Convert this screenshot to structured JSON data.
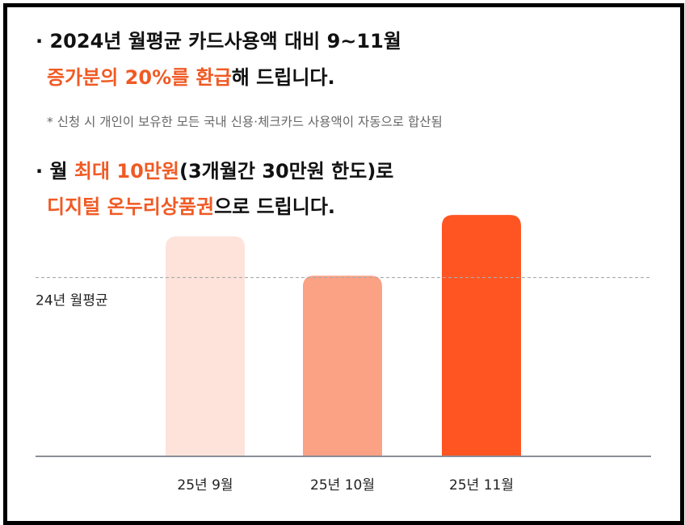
{
  "headline1": {
    "bullet": "·",
    "line1_text": "2024년 월평균 카드사용액 대비 9~11월",
    "line2_highlight": "증가분의 20%를 환급",
    "line2_rest": "해 드립니다."
  },
  "note": "* 신청 시 개인이 보유한 모든 국내 신용·체크카드 사용액이 자동으로 합산됨",
  "headline2": {
    "bullet": "·",
    "line1_pre": "월 ",
    "line1_highlight": "최대 10만원",
    "line1_rest": "(3개월간 30만원 한도)로",
    "line2_highlight": "디지털 온누리상품권",
    "line2_rest": "으로 드립니다."
  },
  "colors": {
    "accent": "#f05a24",
    "bar_sep": "#fde3da",
    "bar_oct": "#fba184",
    "bar_nov": "#ff5522",
    "baseline": "#8a8f99",
    "refline": "#aaaaaa"
  },
  "chart_data": {
    "type": "bar",
    "categories": [
      "25년 9월",
      "25년 10월",
      "25년 11월"
    ],
    "values": [
      123,
      101,
      135
    ],
    "reference": {
      "label": "24년 월평균",
      "value": 100
    },
    "ylim": [
      0,
      140
    ],
    "title": "",
    "xlabel": "",
    "ylabel": "",
    "grid": false
  }
}
